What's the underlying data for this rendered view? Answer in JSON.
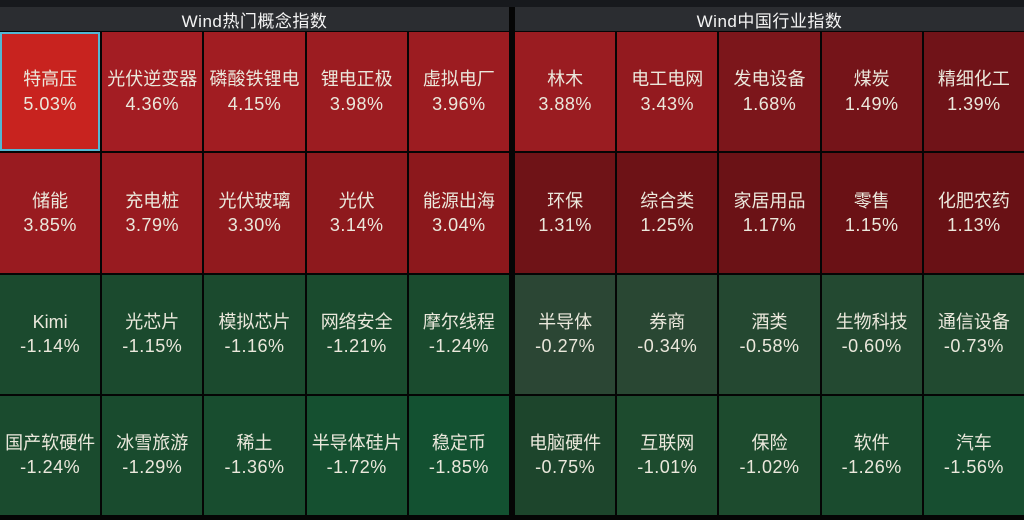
{
  "app": {
    "background": "#050505",
    "top_strip_color": "#17191d",
    "header_bg": "#2b2d31",
    "header_text_color": "#f4f4f4",
    "cell_text_color": "#ebe8dc",
    "selected_border_color": "#53b7d3"
  },
  "chart_data": [
    {
      "type": "heatmap",
      "title": "Wind热门概念指数",
      "columns": 5,
      "rows": 4,
      "value_format": "percent_change",
      "color_rule": "red = gain, green = loss; intensity scales with magnitude",
      "cells": [
        {
          "name": "特高压",
          "change_pct": 5.03,
          "label": "5.03%",
          "color": "#c8231f",
          "selected": true
        },
        {
          "name": "光伏逆变器",
          "change_pct": 4.36,
          "label": "4.36%",
          "color": "#a31d23",
          "selected": false
        },
        {
          "name": "磷酸铁锂电",
          "change_pct": 4.15,
          "label": "4.15%",
          "color": "#a11d22",
          "selected": false
        },
        {
          "name": "锂电正极",
          "change_pct": 3.98,
          "label": "3.98%",
          "color": "#9c1c21",
          "selected": false
        },
        {
          "name": "虚拟电厂",
          "change_pct": 3.96,
          "label": "3.96%",
          "color": "#9c1c21",
          "selected": false
        },
        {
          "name": "储能",
          "change_pct": 3.85,
          "label": "3.85%",
          "color": "#991b20",
          "selected": false
        },
        {
          "name": "充电桩",
          "change_pct": 3.79,
          "label": "3.79%",
          "color": "#981b20",
          "selected": false
        },
        {
          "name": "光伏玻璃",
          "change_pct": 3.3,
          "label": "3.30%",
          "color": "#911a1e",
          "selected": false
        },
        {
          "name": "光伏",
          "change_pct": 3.14,
          "label": "3.14%",
          "color": "#8e191d",
          "selected": false
        },
        {
          "name": "能源出海",
          "change_pct": 3.04,
          "label": "3.04%",
          "color": "#8c181c",
          "selected": false
        },
        {
          "name": "Kimi",
          "change_pct": -1.14,
          "label": "-1.14%",
          "color": "#1b4a2e",
          "selected": false
        },
        {
          "name": "光芯片",
          "change_pct": -1.15,
          "label": "-1.15%",
          "color": "#1b4a2e",
          "selected": false
        },
        {
          "name": "模拟芯片",
          "change_pct": -1.16,
          "label": "-1.16%",
          "color": "#1b4a2e",
          "selected": false
        },
        {
          "name": "网络安全",
          "change_pct": -1.21,
          "label": "-1.21%",
          "color": "#1a4b2e",
          "selected": false
        },
        {
          "name": "摩尔线程",
          "change_pct": -1.24,
          "label": "-1.24%",
          "color": "#1a4b2e",
          "selected": false
        },
        {
          "name": "国产软硬件",
          "change_pct": -1.24,
          "label": "-1.24%",
          "color": "#1a4b2e",
          "selected": false
        },
        {
          "name": "冰雪旅游",
          "change_pct": -1.29,
          "label": "-1.29%",
          "color": "#194b2e",
          "selected": false
        },
        {
          "name": "稀土",
          "change_pct": -1.36,
          "label": "-1.36%",
          "color": "#184d2f",
          "selected": false
        },
        {
          "name": "半导体硅片",
          "change_pct": -1.72,
          "label": "-1.72%",
          "color": "#155030",
          "selected": false
        },
        {
          "name": "稳定币",
          "change_pct": -1.85,
          "label": "-1.85%",
          "color": "#135131",
          "selected": false
        }
      ]
    },
    {
      "type": "heatmap",
      "title": "Wind中国行业指数",
      "columns": 5,
      "rows": 4,
      "value_format": "percent_change",
      "color_rule": "red = gain, green = loss; intensity scales with magnitude",
      "cells": [
        {
          "name": "林木",
          "change_pct": 3.88,
          "label": "3.88%",
          "color": "#9a1c21",
          "selected": false
        },
        {
          "name": "电工电网",
          "change_pct": 3.43,
          "label": "3.43%",
          "color": "#931a1f",
          "selected": false
        },
        {
          "name": "发电设备",
          "change_pct": 1.68,
          "label": "1.68%",
          "color": "#7c161b",
          "selected": false
        },
        {
          "name": "煤炭",
          "change_pct": 1.49,
          "label": "1.49%",
          "color": "#751419",
          "selected": false
        },
        {
          "name": "精细化工",
          "change_pct": 1.39,
          "label": "1.39%",
          "color": "#701318",
          "selected": false
        },
        {
          "name": "环保",
          "change_pct": 1.31,
          "label": "1.31%",
          "color": "#6f1317",
          "selected": false
        },
        {
          "name": "综合类",
          "change_pct": 1.25,
          "label": "1.25%",
          "color": "#6d1216",
          "selected": false
        },
        {
          "name": "家居用品",
          "change_pct": 1.17,
          "label": "1.17%",
          "color": "#6b1216",
          "selected": false
        },
        {
          "name": "零售",
          "change_pct": 1.15,
          "label": "1.15%",
          "color": "#6a1115",
          "selected": false
        },
        {
          "name": "化肥农药",
          "change_pct": 1.13,
          "label": "1.13%",
          "color": "#691115",
          "selected": false
        },
        {
          "name": "半导体",
          "change_pct": -0.27,
          "label": "-0.27%",
          "color": "#2b4634",
          "selected": false
        },
        {
          "name": "券商",
          "change_pct": -0.34,
          "label": "-0.34%",
          "color": "#294733",
          "selected": false
        },
        {
          "name": "酒类",
          "change_pct": -0.58,
          "label": "-0.58%",
          "color": "#244831",
          "selected": false
        },
        {
          "name": "生物科技",
          "change_pct": -0.6,
          "label": "-0.60%",
          "color": "#234931",
          "selected": false
        },
        {
          "name": "通信设备",
          "change_pct": -0.73,
          "label": "-0.73%",
          "color": "#214a30",
          "selected": false
        },
        {
          "name": "电脑硬件",
          "change_pct": -0.75,
          "label": "-0.75%",
          "color": "#1d452c",
          "selected": false
        },
        {
          "name": "互联网",
          "change_pct": -1.01,
          "label": "-1.01%",
          "color": "#1d4b2e",
          "selected": false
        },
        {
          "name": "保险",
          "change_pct": -1.02,
          "label": "-1.02%",
          "color": "#1d4b2e",
          "selected": false
        },
        {
          "name": "软件",
          "change_pct": -1.26,
          "label": "-1.26%",
          "color": "#1a4b2e",
          "selected": false
        },
        {
          "name": "汽车",
          "change_pct": -1.56,
          "label": "-1.56%",
          "color": "#174e30",
          "selected": false
        }
      ]
    }
  ]
}
